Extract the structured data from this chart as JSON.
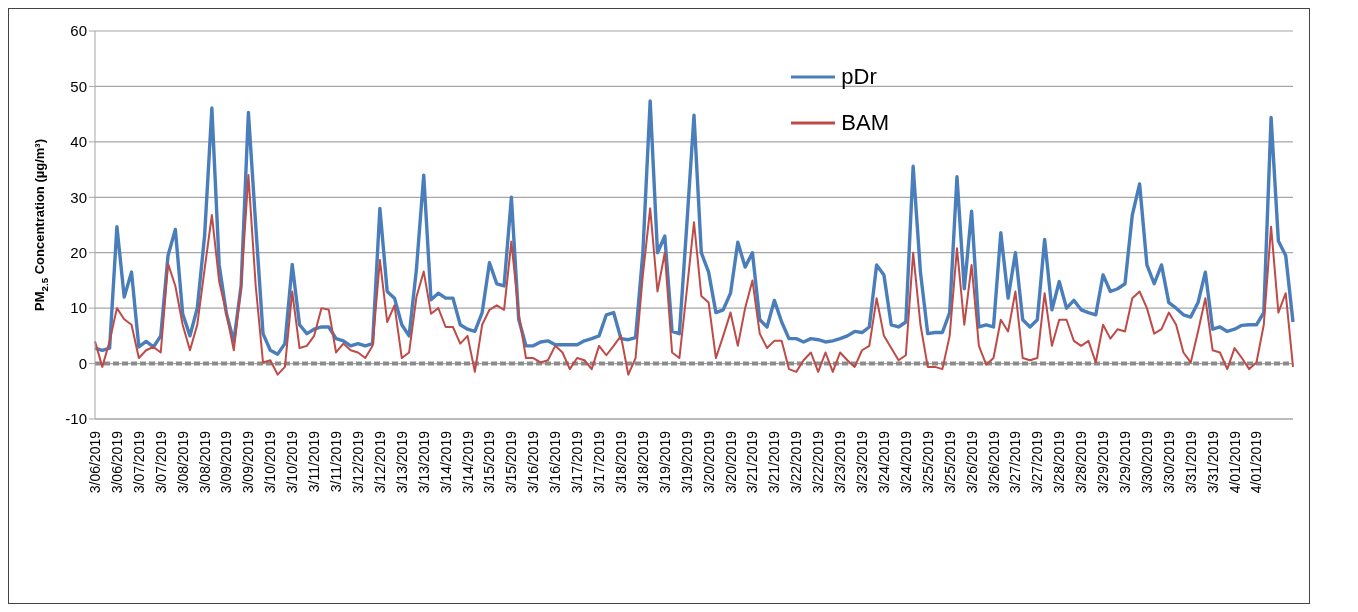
{
  "chart_data": {
    "type": "line",
    "ylabel": "PM$_{2.5}$ Concentration (µg/m³)",
    "ylim": [
      -10,
      60
    ],
    "yticks": [
      -10,
      0,
      10,
      20,
      30,
      40,
      50,
      60
    ],
    "grid": "y",
    "legend": "top right",
    "ref_lines": [
      {
        "axis": "y",
        "value": 0,
        "color": "#8c8c8c",
        "line_style": "dashed"
      }
    ],
    "categories": [
      "3/06/2019",
      null,
      null,
      "3/06/2019",
      null,
      null,
      "3/07/2019",
      null,
      null,
      "3/07/2019",
      null,
      null,
      "3/08/2019",
      null,
      null,
      "3/08/2019",
      null,
      null,
      "3/09/2019",
      null,
      null,
      "3/09/2019",
      null,
      null,
      "3/10/2019",
      null,
      null,
      "3/10/2019",
      null,
      null,
      "3/11/2019",
      null,
      null,
      "3/11/2019",
      null,
      null,
      "3/12/2019",
      null,
      null,
      "3/12/2019",
      null,
      null,
      "3/13/2019",
      null,
      null,
      "3/13/2019",
      null,
      null,
      "3/14/2019",
      null,
      null,
      "3/14/2019",
      null,
      null,
      "3/15/2019",
      null,
      null,
      "3/15/2019",
      null,
      null,
      "3/16/2019",
      null,
      null,
      "3/16/2019",
      null,
      null,
      "3/17/2019",
      null,
      null,
      "3/17/2019",
      null,
      null,
      "3/18/2019",
      null,
      null,
      "3/18/2019",
      null,
      null,
      "3/19/2019",
      null,
      null,
      "3/19/2019",
      null,
      null,
      "3/20/2019",
      null,
      null,
      "3/20/2019",
      null,
      null,
      "3/21/2019",
      null,
      null,
      "3/21/2019",
      null,
      null,
      "3/22/2019",
      null,
      null,
      "3/22/2019",
      null,
      null,
      "3/23/2019",
      null,
      null,
      "3/23/2019",
      null,
      null,
      "3/24/2019",
      null,
      null,
      "3/24/2019",
      null,
      null,
      "3/25/2019",
      null,
      null,
      "3/25/2019",
      null,
      null,
      "3/26/2019",
      null,
      null,
      "3/26/2019",
      null,
      null,
      "3/27/2019",
      null,
      null,
      "3/27/2019",
      null,
      null,
      "3/28/2019",
      null,
      null,
      "3/28/2019",
      null,
      null,
      "3/29/2019",
      null,
      null,
      "3/29/2019",
      null,
      null,
      "3/30/2019",
      null,
      null,
      "3/30/2019",
      null,
      null,
      "3/31/2019",
      null,
      null,
      "3/31/2019",
      null,
      null,
      "4/01/2019",
      null,
      null,
      "4/01/2019",
      null,
      null,
      null,
      null,
      null
    ],
    "series": [
      {
        "name": "pDr",
        "color": "#4a7ebb",
        "values": [
          2.8,
          2.4,
          2.8,
          24.7,
          12,
          16.5,
          3,
          4,
          3,
          5,
          19.5,
          24.2,
          9,
          5,
          10,
          23,
          46.1,
          17.8,
          9,
          4,
          14,
          45.3,
          25,
          5.4,
          2.4,
          1.7,
          3.6,
          17.9,
          7,
          5.4,
          6.2,
          6.6,
          6.6,
          4.5,
          4.1,
          3.2,
          3.6,
          3.2,
          3.6,
          28,
          13,
          11.8,
          7,
          5,
          17,
          34,
          11.5,
          12.7,
          11.8,
          11.8,
          7,
          6.2,
          5.8,
          9.2,
          18.2,
          14.4,
          14,
          30,
          8,
          3.2,
          3.2,
          3.9,
          4.1,
          3.4,
          3.4,
          3.4,
          3.4,
          4.1,
          4.5,
          5,
          8.8,
          9.2,
          4.5,
          4.3,
          4.7,
          20,
          47.4,
          20,
          23,
          5.8,
          5.4,
          24.7,
          44.8,
          20,
          16.5,
          9.2,
          9.7,
          12.7,
          21.9,
          17.4,
          20,
          7.9,
          6.6,
          11.4,
          7.5,
          4.5,
          4.5,
          3.9,
          4.5,
          4.3,
          3.9,
          4.1,
          4.5,
          5,
          5.8,
          5.6,
          6.6,
          17.8,
          16,
          7,
          6.6,
          7.5,
          35.6,
          16.5,
          5.4,
          5.6,
          5.6,
          9.2,
          33.7,
          13.5,
          27.5,
          6.6,
          7,
          6.6,
          23.6,
          11.8,
          20,
          7.9,
          6.6,
          7.9,
          22.4,
          9.7,
          14.8,
          10,
          11.4,
          9.7,
          9.2,
          8.8,
          16,
          13,
          13.5,
          14.4,
          26.8,
          32.4,
          17.8,
          14.4,
          17.8,
          11,
          10,
          8.8,
          8.4,
          11,
          16.5,
          6.2,
          6.6,
          5.8,
          6.2,
          6.9,
          7,
          7,
          9.2,
          44.4,
          22.1,
          19.5,
          7.5
        ]
      },
      {
        "name": "BAM",
        "color": "#be4b48",
        "values": [
          4,
          -0.6,
          4,
          10,
          8,
          7,
          1,
          2.4,
          3,
          2,
          18,
          14,
          7,
          2.4,
          7,
          17,
          26.8,
          14.8,
          9,
          2.4,
          14,
          34,
          14,
          0.2,
          0.6,
          -2,
          -0.6,
          13,
          2.8,
          3.2,
          5,
          10,
          9.7,
          2,
          3.6,
          2.4,
          2,
          1,
          3.2,
          18.7,
          7.5,
          10.5,
          1,
          2,
          12,
          16.6,
          9,
          10,
          6.6,
          6.6,
          3.6,
          5,
          -1.5,
          7,
          9.7,
          10.5,
          9.7,
          22,
          9,
          1,
          1,
          0.2,
          0.6,
          3.2,
          2,
          -1,
          1,
          0.6,
          -1,
          3.2,
          1.5,
          3.2,
          5,
          -2,
          1,
          16,
          28,
          13,
          20,
          2,
          1,
          13,
          25.5,
          12.2,
          11,
          1,
          5,
          9.2,
          3.2,
          10,
          15,
          5.4,
          2.8,
          4.1,
          4.1,
          -1,
          -1.5,
          0.6,
          2,
          -1.5,
          2,
          -1.5,
          2,
          0.6,
          -0.6,
          2.4,
          3.2,
          11.8,
          5,
          2.8,
          0.6,
          1.5,
          20,
          7,
          -0.6,
          -0.6,
          -1,
          5,
          20.8,
          7,
          17.8,
          3.2,
          -0.2,
          1,
          7.9,
          5.8,
          13,
          1,
          0.6,
          1,
          12.7,
          3.2,
          7.9,
          7.9,
          4.1,
          3.2,
          4.1,
          0.2,
          7,
          4.5,
          6.2,
          5.8,
          11.8,
          13,
          10,
          5.4,
          6.2,
          9.2,
          7,
          2,
          0.2,
          5.8,
          11.8,
          2.4,
          2,
          -1,
          2.8,
          1,
          -1,
          0.2,
          7,
          24.7,
          9.2,
          12.7,
          -0.6
        ]
      }
    ]
  }
}
